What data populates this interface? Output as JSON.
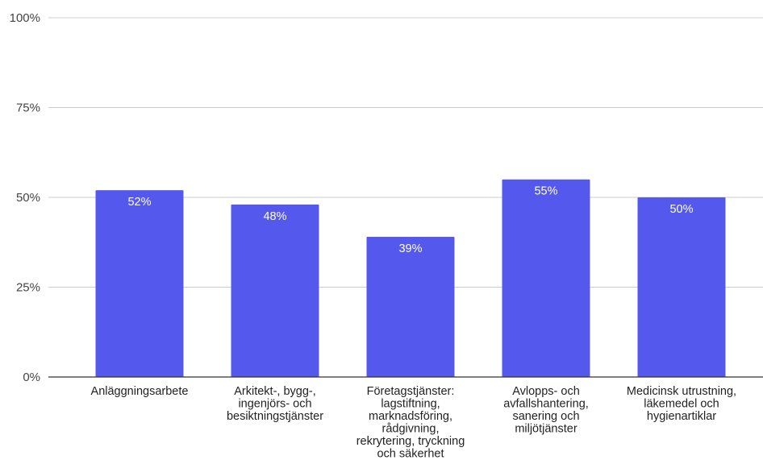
{
  "chart_data": {
    "type": "bar",
    "categories": [
      [
        "Anläggningsarbete"
      ],
      [
        "Arkitekt-, bygg-,",
        "ingenjörs- och",
        "besiktningstjänster"
      ],
      [
        "Företagstjänster:",
        "lagstiftning,",
        "marknadsföring,",
        "rådgivning,",
        "rekrytering, tryckning",
        "och säkerhet"
      ],
      [
        "Avlopps- och",
        "avfallshantering,",
        "sanering och",
        "miljötjänster"
      ],
      [
        "Medicinsk utrustning,",
        "läkemedel och",
        "hygienartiklar"
      ]
    ],
    "values": [
      52,
      48,
      39,
      55,
      50
    ],
    "data_labels": [
      "52%",
      "48%",
      "39%",
      "55%",
      "50%"
    ],
    "y_ticks": [
      {
        "value": 0,
        "label": "0%"
      },
      {
        "value": 25,
        "label": "25%"
      },
      {
        "value": 50,
        "label": "50%"
      },
      {
        "value": 75,
        "label": "75%"
      },
      {
        "value": 100,
        "label": "100%"
      }
    ],
    "ylim": [
      0,
      100
    ],
    "grid": true,
    "bar_color": "#5558EC"
  }
}
